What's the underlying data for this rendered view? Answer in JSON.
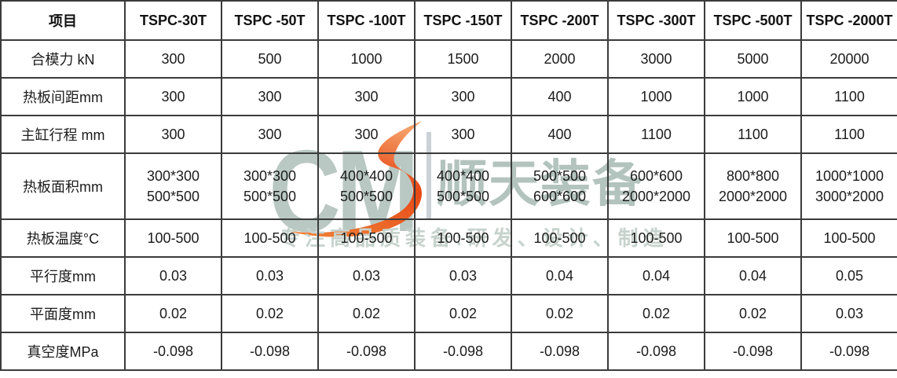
{
  "table": {
    "corner_label": "项目",
    "header": [
      "TSPC-30T",
      "TSPC -50T",
      "TSPC -100T",
      "TSPC -150T",
      "TSPC -200T",
      "TSPC -300T",
      "TSPC -500T",
      "TSPC -2000T"
    ],
    "rows": [
      {
        "label": "合模力 kN",
        "values": [
          "300",
          "500",
          "1000",
          "1500",
          "2000",
          "3000",
          "5000",
          "20000"
        ]
      },
      {
        "label": "热板间距mm",
        "values": [
          "300",
          "300",
          "300",
          "300",
          "400",
          "1000",
          "1000",
          "1100"
        ]
      },
      {
        "label": "主缸行程 mm",
        "values": [
          "300",
          "300",
          "300",
          "300",
          "400",
          "1100",
          "1100",
          "1100"
        ]
      },
      {
        "label": "热板面积mm",
        "values": [
          [
            "300*300",
            "500*500"
          ],
          [
            "300*300",
            "500*500"
          ],
          [
            "400*400",
            "500*500"
          ],
          [
            "400*400",
            "500*500"
          ],
          [
            "500*500",
            "600*600"
          ],
          [
            "600*600",
            "2000*2000"
          ],
          [
            "800*800",
            "2000*2000"
          ],
          [
            "1000*1000",
            "3000*2000"
          ]
        ]
      },
      {
        "label": "热板温度°C",
        "values": [
          "100-500",
          "100-500",
          "100-500",
          "100-500",
          "100-500",
          "100-500",
          "100-500",
          "100-500"
        ]
      },
      {
        "label": "平行度mm",
        "values": [
          "0.03",
          "0.03",
          "0.03",
          "0.03",
          "0.04",
          "0.04",
          "0.04",
          "0.05"
        ]
      },
      {
        "label": "平面度mm",
        "values": [
          "0.02",
          "0.02",
          "0.02",
          "0.02",
          "0.02",
          "0.02",
          "0.02",
          "0.03"
        ]
      },
      {
        "label": "真空度MPa",
        "values": [
          "-0.098",
          "-0.098",
          "-0.098",
          "-0.098",
          "-0.098",
          "-0.098",
          "-0.098",
          "-0.098"
        ]
      }
    ]
  },
  "watermark": {
    "letters": "CM",
    "brand": "顺天装备",
    "tagline": "专注高品质装备:研发、设计、制造"
  },
  "colors": {
    "border": "#3b3b3b",
    "text": "#1c1c1c",
    "watermark_letters": "#b9c8c2",
    "watermark_brand": "#b3c3bd",
    "watermark_tagline": "#c7d3cd",
    "watermark_accent_start": "#f59e66",
    "watermark_accent_mid": "#e64715",
    "watermark_accent_end": "#ef7a33"
  }
}
